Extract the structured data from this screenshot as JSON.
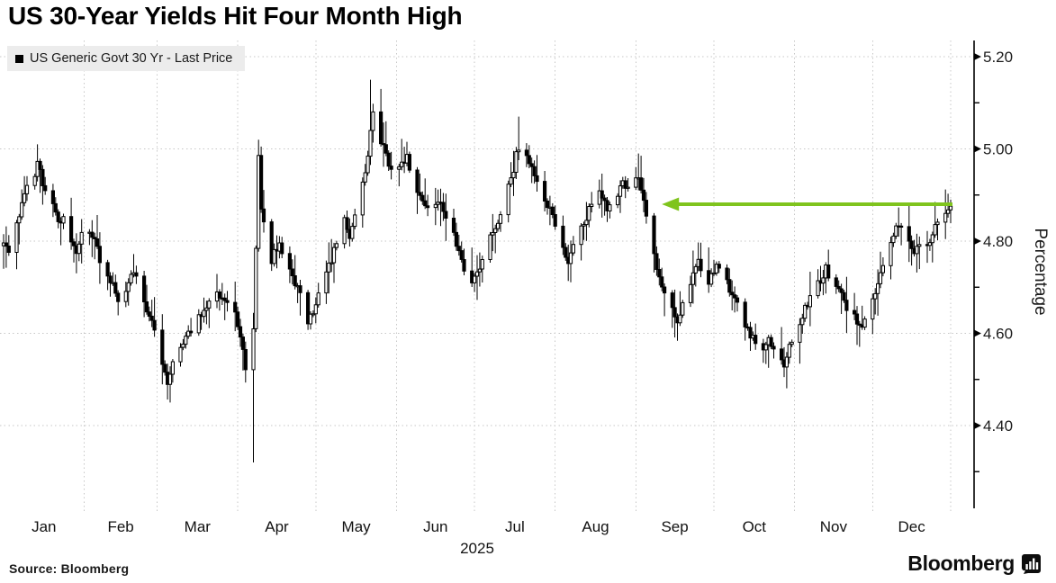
{
  "header": {
    "title": "US 30-Year Yields Hit Four Month High"
  },
  "legend": {
    "label": "US Generic Govt 30 Yr - Last Price",
    "swatch_color": "#000000",
    "background": "#ececec"
  },
  "footer": {
    "source_label": "Source: Bloomberg",
    "brand": "Bloomberg"
  },
  "chart_data": {
    "type": "candlestick",
    "title": "US 30-Year Yields Hit Four Month High",
    "series": [
      {
        "name": "US Generic Govt 30 Yr - Last Price",
        "color": "#000000",
        "up_style": "hollow",
        "down_style": "filled"
      }
    ],
    "x_axis": {
      "year_label": "2025",
      "month_labels": [
        "Jan",
        "Feb",
        "Mar",
        "Apr",
        "May",
        "Jun",
        "Jul",
        "Aug",
        "Sep",
        "Oct",
        "Nov",
        "Dec"
      ],
      "month_start_days": [
        1,
        32,
        60,
        91,
        121,
        152,
        182,
        213,
        244,
        274,
        305,
        335,
        365
      ]
    },
    "y_axis": {
      "label": "Percentage",
      "tick_labels": [
        "5.20",
        "5.00",
        "4.80",
        "4.60",
        "4.40"
      ],
      "tick_values": [
        5.2,
        5.0,
        4.8,
        4.6,
        4.4
      ],
      "minor_tick_values": [
        5.1,
        4.9,
        4.7,
        4.5,
        4.3
      ],
      "range": [
        4.22,
        5.235
      ]
    },
    "grid": {
      "horizontal": true,
      "vertical": true,
      "color": "#c7c7c7",
      "style": "dotted"
    },
    "anchors_day_close": [
      [
        1,
        4.79
      ],
      [
        3,
        4.77
      ],
      [
        6,
        4.83
      ],
      [
        8,
        4.89
      ],
      [
        10,
        4.92
      ],
      [
        13,
        4.95
      ],
      [
        14,
        4.97
      ],
      [
        16,
        4.93
      ],
      [
        20,
        4.88
      ],
      [
        22,
        4.84
      ],
      [
        24,
        4.86
      ],
      [
        27,
        4.8
      ],
      [
        29,
        4.77
      ],
      [
        31,
        4.81
      ],
      [
        34,
        4.83
      ],
      [
        37,
        4.78
      ],
      [
        40,
        4.73
      ],
      [
        43,
        4.7
      ],
      [
        45,
        4.66
      ],
      [
        48,
        4.7
      ],
      [
        51,
        4.74
      ],
      [
        54,
        4.69
      ],
      [
        57,
        4.64
      ],
      [
        59,
        4.6
      ],
      [
        62,
        4.54
      ],
      [
        64,
        4.5
      ],
      [
        66,
        4.53
      ],
      [
        69,
        4.57
      ],
      [
        72,
        4.6
      ],
      [
        75,
        4.63
      ],
      [
        79,
        4.66
      ],
      [
        82,
        4.7
      ],
      [
        85,
        4.68
      ],
      [
        88,
        4.66
      ],
      [
        90,
        4.64
      ],
      [
        93,
        4.56
      ],
      [
        95,
        4.49
      ],
      [
        96,
        4.41
      ],
      [
        97,
        4.6
      ],
      [
        99,
        4.98
      ],
      [
        100,
        4.87
      ],
      [
        102,
        4.8
      ],
      [
        104,
        4.76
      ],
      [
        107,
        4.8
      ],
      [
        110,
        4.75
      ],
      [
        113,
        4.71
      ],
      [
        116,
        4.67
      ],
      [
        118,
        4.63
      ],
      [
        120,
        4.65
      ],
      [
        123,
        4.7
      ],
      [
        126,
        4.75
      ],
      [
        129,
        4.79
      ],
      [
        132,
        4.84
      ],
      [
        134,
        4.8
      ],
      [
        137,
        4.88
      ],
      [
        140,
        4.94
      ],
      [
        142,
        5.04
      ],
      [
        143,
        5.09
      ],
      [
        145,
        5.03
      ],
      [
        148,
        4.99
      ],
      [
        151,
        4.94
      ],
      [
        153,
        4.96
      ],
      [
        156,
        4.98
      ],
      [
        159,
        4.92
      ],
      [
        162,
        4.89
      ],
      [
        165,
        4.86
      ],
      [
        168,
        4.89
      ],
      [
        171,
        4.84
      ],
      [
        174,
        4.81
      ],
      [
        177,
        4.76
      ],
      [
        179,
        4.73
      ],
      [
        181,
        4.72
      ],
      [
        184,
        4.75
      ],
      [
        187,
        4.79
      ],
      [
        190,
        4.83
      ],
      [
        193,
        4.88
      ],
      [
        196,
        4.93
      ],
      [
        198,
        4.99
      ],
      [
        200,
        5.01
      ],
      [
        202,
        4.98
      ],
      [
        205,
        4.94
      ],
      [
        208,
        4.91
      ],
      [
        211,
        4.87
      ],
      [
        213,
        4.83
      ],
      [
        216,
        4.78
      ],
      [
        218,
        4.76
      ],
      [
        221,
        4.8
      ],
      [
        224,
        4.84
      ],
      [
        227,
        4.88
      ],
      [
        230,
        4.91
      ],
      [
        233,
        4.87
      ],
      [
        236,
        4.9
      ],
      [
        239,
        4.92
      ],
      [
        242,
        4.9
      ],
      [
        245,
        4.94
      ],
      [
        247,
        4.89
      ],
      [
        249,
        4.82
      ],
      [
        252,
        4.74
      ],
      [
        255,
        4.68
      ],
      [
        258,
        4.65
      ],
      [
        260,
        4.63
      ],
      [
        263,
        4.68
      ],
      [
        266,
        4.73
      ],
      [
        268,
        4.76
      ],
      [
        271,
        4.71
      ],
      [
        274,
        4.73
      ],
      [
        277,
        4.76
      ],
      [
        280,
        4.7
      ],
      [
        283,
        4.66
      ],
      [
        286,
        4.62
      ],
      [
        289,
        4.59
      ],
      [
        292,
        4.56
      ],
      [
        295,
        4.59
      ],
      [
        298,
        4.55
      ],
      [
        301,
        4.53
      ],
      [
        303,
        4.57
      ],
      [
        306,
        4.61
      ],
      [
        309,
        4.65
      ],
      [
        312,
        4.69
      ],
      [
        315,
        4.72
      ],
      [
        317,
        4.74
      ],
      [
        320,
        4.71
      ],
      [
        323,
        4.68
      ],
      [
        326,
        4.65
      ],
      [
        329,
        4.63
      ],
      [
        331,
        4.62
      ],
      [
        334,
        4.66
      ],
      [
        337,
        4.71
      ],
      [
        340,
        4.76
      ],
      [
        343,
        4.81
      ],
      [
        345,
        4.84
      ],
      [
        348,
        4.8
      ],
      [
        351,
        4.78
      ],
      [
        354,
        4.81
      ],
      [
        356,
        4.79
      ],
      [
        358,
        4.82
      ],
      [
        361,
        4.84
      ],
      [
        363,
        4.86
      ],
      [
        365,
        4.875
      ]
    ],
    "wick_events": [
      {
        "day": 14,
        "high": 5.01
      },
      {
        "day": 65,
        "low": 4.45
      },
      {
        "day": 97,
        "low": 4.32
      },
      {
        "day": 99,
        "high": 5.02
      },
      {
        "day": 142,
        "high": 5.15
      },
      {
        "day": 199,
        "high": 5.07
      },
      {
        "day": 245,
        "high": 4.99
      },
      {
        "day": 301,
        "low": 4.52
      },
      {
        "day": 365,
        "high": 4.89
      }
    ],
    "last_price": 4.88,
    "annotation_arrow": {
      "value": 4.88,
      "tip_day": 254,
      "from_day": 365,
      "color": "#7fc41d"
    }
  }
}
